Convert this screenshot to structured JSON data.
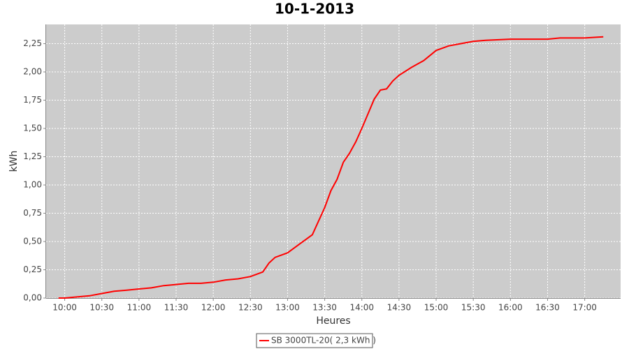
{
  "chart_data": {
    "type": "line",
    "title": "10-1-2013",
    "x_label": "Heures",
    "y_label": "kWh",
    "x": [
      "09:55",
      "10:00",
      "10:10",
      "10:20",
      "10:30",
      "10:40",
      "10:50",
      "11:00",
      "11:10",
      "11:20",
      "11:30",
      "11:40",
      "11:50",
      "12:00",
      "12:10",
      "12:20",
      "12:30",
      "12:40",
      "12:45",
      "12:50",
      "13:00",
      "13:10",
      "13:20",
      "13:25",
      "13:30",
      "13:35",
      "13:40",
      "13:45",
      "13:50",
      "13:55",
      "14:00",
      "14:05",
      "14:10",
      "14:15",
      "14:20",
      "14:25",
      "14:30",
      "14:40",
      "14:50",
      "15:00",
      "15:10",
      "15:20",
      "15:30",
      "15:40",
      "16:00",
      "16:30",
      "16:40",
      "17:00",
      "17:15"
    ],
    "series": [
      {
        "name": "SB 3000TL-20( 2,3 kWh )",
        "color": "#ff0000",
        "values": [
          0.0,
          0.0,
          0.01,
          0.02,
          0.04,
          0.06,
          0.07,
          0.08,
          0.09,
          0.11,
          0.12,
          0.13,
          0.13,
          0.14,
          0.16,
          0.17,
          0.19,
          0.23,
          0.31,
          0.36,
          0.4,
          0.48,
          0.56,
          0.68,
          0.8,
          0.95,
          1.05,
          1.2,
          1.28,
          1.38,
          1.5,
          1.63,
          1.76,
          1.84,
          1.85,
          1.92,
          1.97,
          2.04,
          2.1,
          2.19,
          2.23,
          2.25,
          2.27,
          2.28,
          2.29,
          2.29,
          2.3,
          2.3,
          2.31
        ]
      }
    ],
    "xlim": [
      "09:45",
      "17:29"
    ],
    "xticks": [
      "10:00",
      "10:30",
      "11:00",
      "11:30",
      "12:00",
      "12:30",
      "13:00",
      "13:30",
      "14:00",
      "14:30",
      "15:00",
      "15:30",
      "16:00",
      "16:30",
      "17:00"
    ],
    "ylim": [
      0,
      2.42
    ],
    "yticks": [
      {
        "value": 0,
        "label": "0,00"
      },
      {
        "value": 0.25,
        "label": "0,25"
      },
      {
        "value": 0.5,
        "label": "0,50"
      },
      {
        "value": 0.75,
        "label": "0,75"
      },
      {
        "value": 1,
        "label": "1,00"
      },
      {
        "value": 1.25,
        "label": "1,25"
      },
      {
        "value": 1.5,
        "label": "1,50"
      },
      {
        "value": 1.75,
        "label": "1,75"
      },
      {
        "value": 2,
        "label": "2,00"
      },
      {
        "value": 2.25,
        "label": "2,25"
      }
    ],
    "grid": true,
    "legend": "bottom",
    "plot_background": "#cccccc"
  }
}
